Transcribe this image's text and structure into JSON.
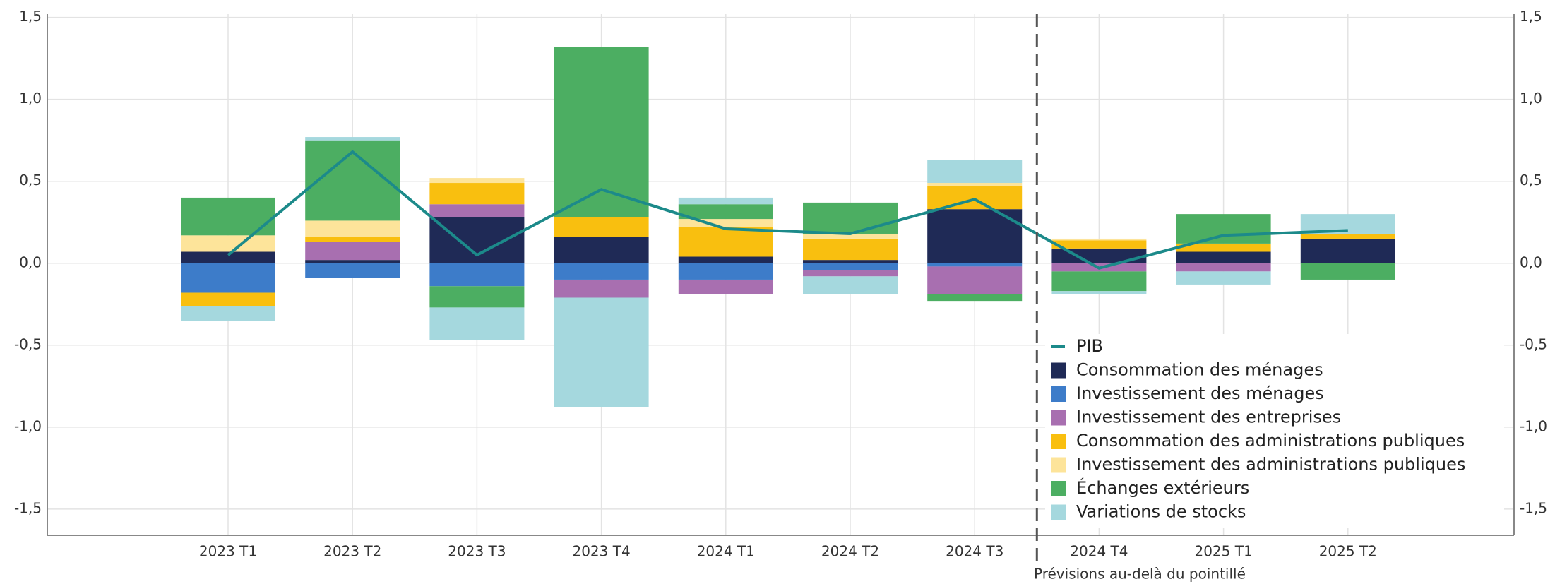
{
  "chart_data": {
    "type": "bar",
    "stacked": true,
    "categories": [
      "2023 T1",
      "2023 T2",
      "2023 T3",
      "2023 T4",
      "2024 T1",
      "2024 T2",
      "2024 T3",
      "2024 T4",
      "2025 T1",
      "2025 T2"
    ],
    "series": [
      {
        "name": "Consommation des ménages",
        "color": "#1f2a56",
        "values": [
          0.07,
          0.02,
          0.28,
          0.16,
          0.04,
          0.02,
          0.33,
          0.09,
          0.07,
          0.15
        ]
      },
      {
        "name": "Investissement des ménages",
        "color": "#3d7cc9",
        "values": [
          -0.18,
          -0.09,
          -0.14,
          -0.1,
          -0.1,
          -0.04,
          -0.02,
          0,
          0,
          0
        ]
      },
      {
        "name": "Investissement des entreprises",
        "color": "#a86fb0",
        "values": [
          0,
          0.11,
          0.08,
          -0.11,
          -0.09,
          -0.04,
          -0.17,
          -0.05,
          -0.05,
          0
        ]
      },
      {
        "name": "Consommation des administrations publiques",
        "color": "#f9bf0f",
        "values": [
          -0.08,
          0.03,
          0.13,
          0.12,
          0.18,
          0.13,
          0.14,
          0.05,
          0.05,
          0.03
        ]
      },
      {
        "name": "Investissement des administrations publiques",
        "color": "#fde49a",
        "values": [
          0.1,
          0.1,
          0.03,
          0,
          0.05,
          0.03,
          0.02,
          0.01,
          0,
          0
        ]
      },
      {
        "name": "Échanges extérieurs",
        "color": "#4cae62",
        "values": [
          0.23,
          0.49,
          -0.13,
          1.04,
          0.09,
          0.19,
          -0.04,
          -0.12,
          0.18,
          -0.1
        ]
      },
      {
        "name": "Variations de stocks",
        "color": "#a5d8de",
        "values": [
          -0.09,
          0.02,
          -0.2,
          -0.67,
          0.04,
          -0.11,
          0.14,
          -0.02,
          -0.08,
          0.12
        ]
      }
    ],
    "line_series": {
      "name": "PIB",
      "color": "#1c8a8a",
      "values": [
        0.05,
        0.68,
        0.05,
        0.45,
        0.21,
        0.18,
        0.39,
        -0.03,
        0.17,
        0.2
      ]
    },
    "ylim": [
      -1.66,
      1.52
    ],
    "yticks": [
      {
        "value": -1.5,
        "label": "-1,5"
      },
      {
        "value": -1.0,
        "label": "-1,0"
      },
      {
        "value": -0.5,
        "label": "-0,5"
      },
      {
        "value": 0,
        "label": "0,0"
      },
      {
        "value": 0.5,
        "label": "0,5"
      },
      {
        "value": 1.0,
        "label": "1,0"
      },
      {
        "value": 1.5,
        "label": "1,5"
      }
    ],
    "grid": true,
    "annotation": "Prévisions au-delà du pointillé",
    "legend": "lower right"
  }
}
